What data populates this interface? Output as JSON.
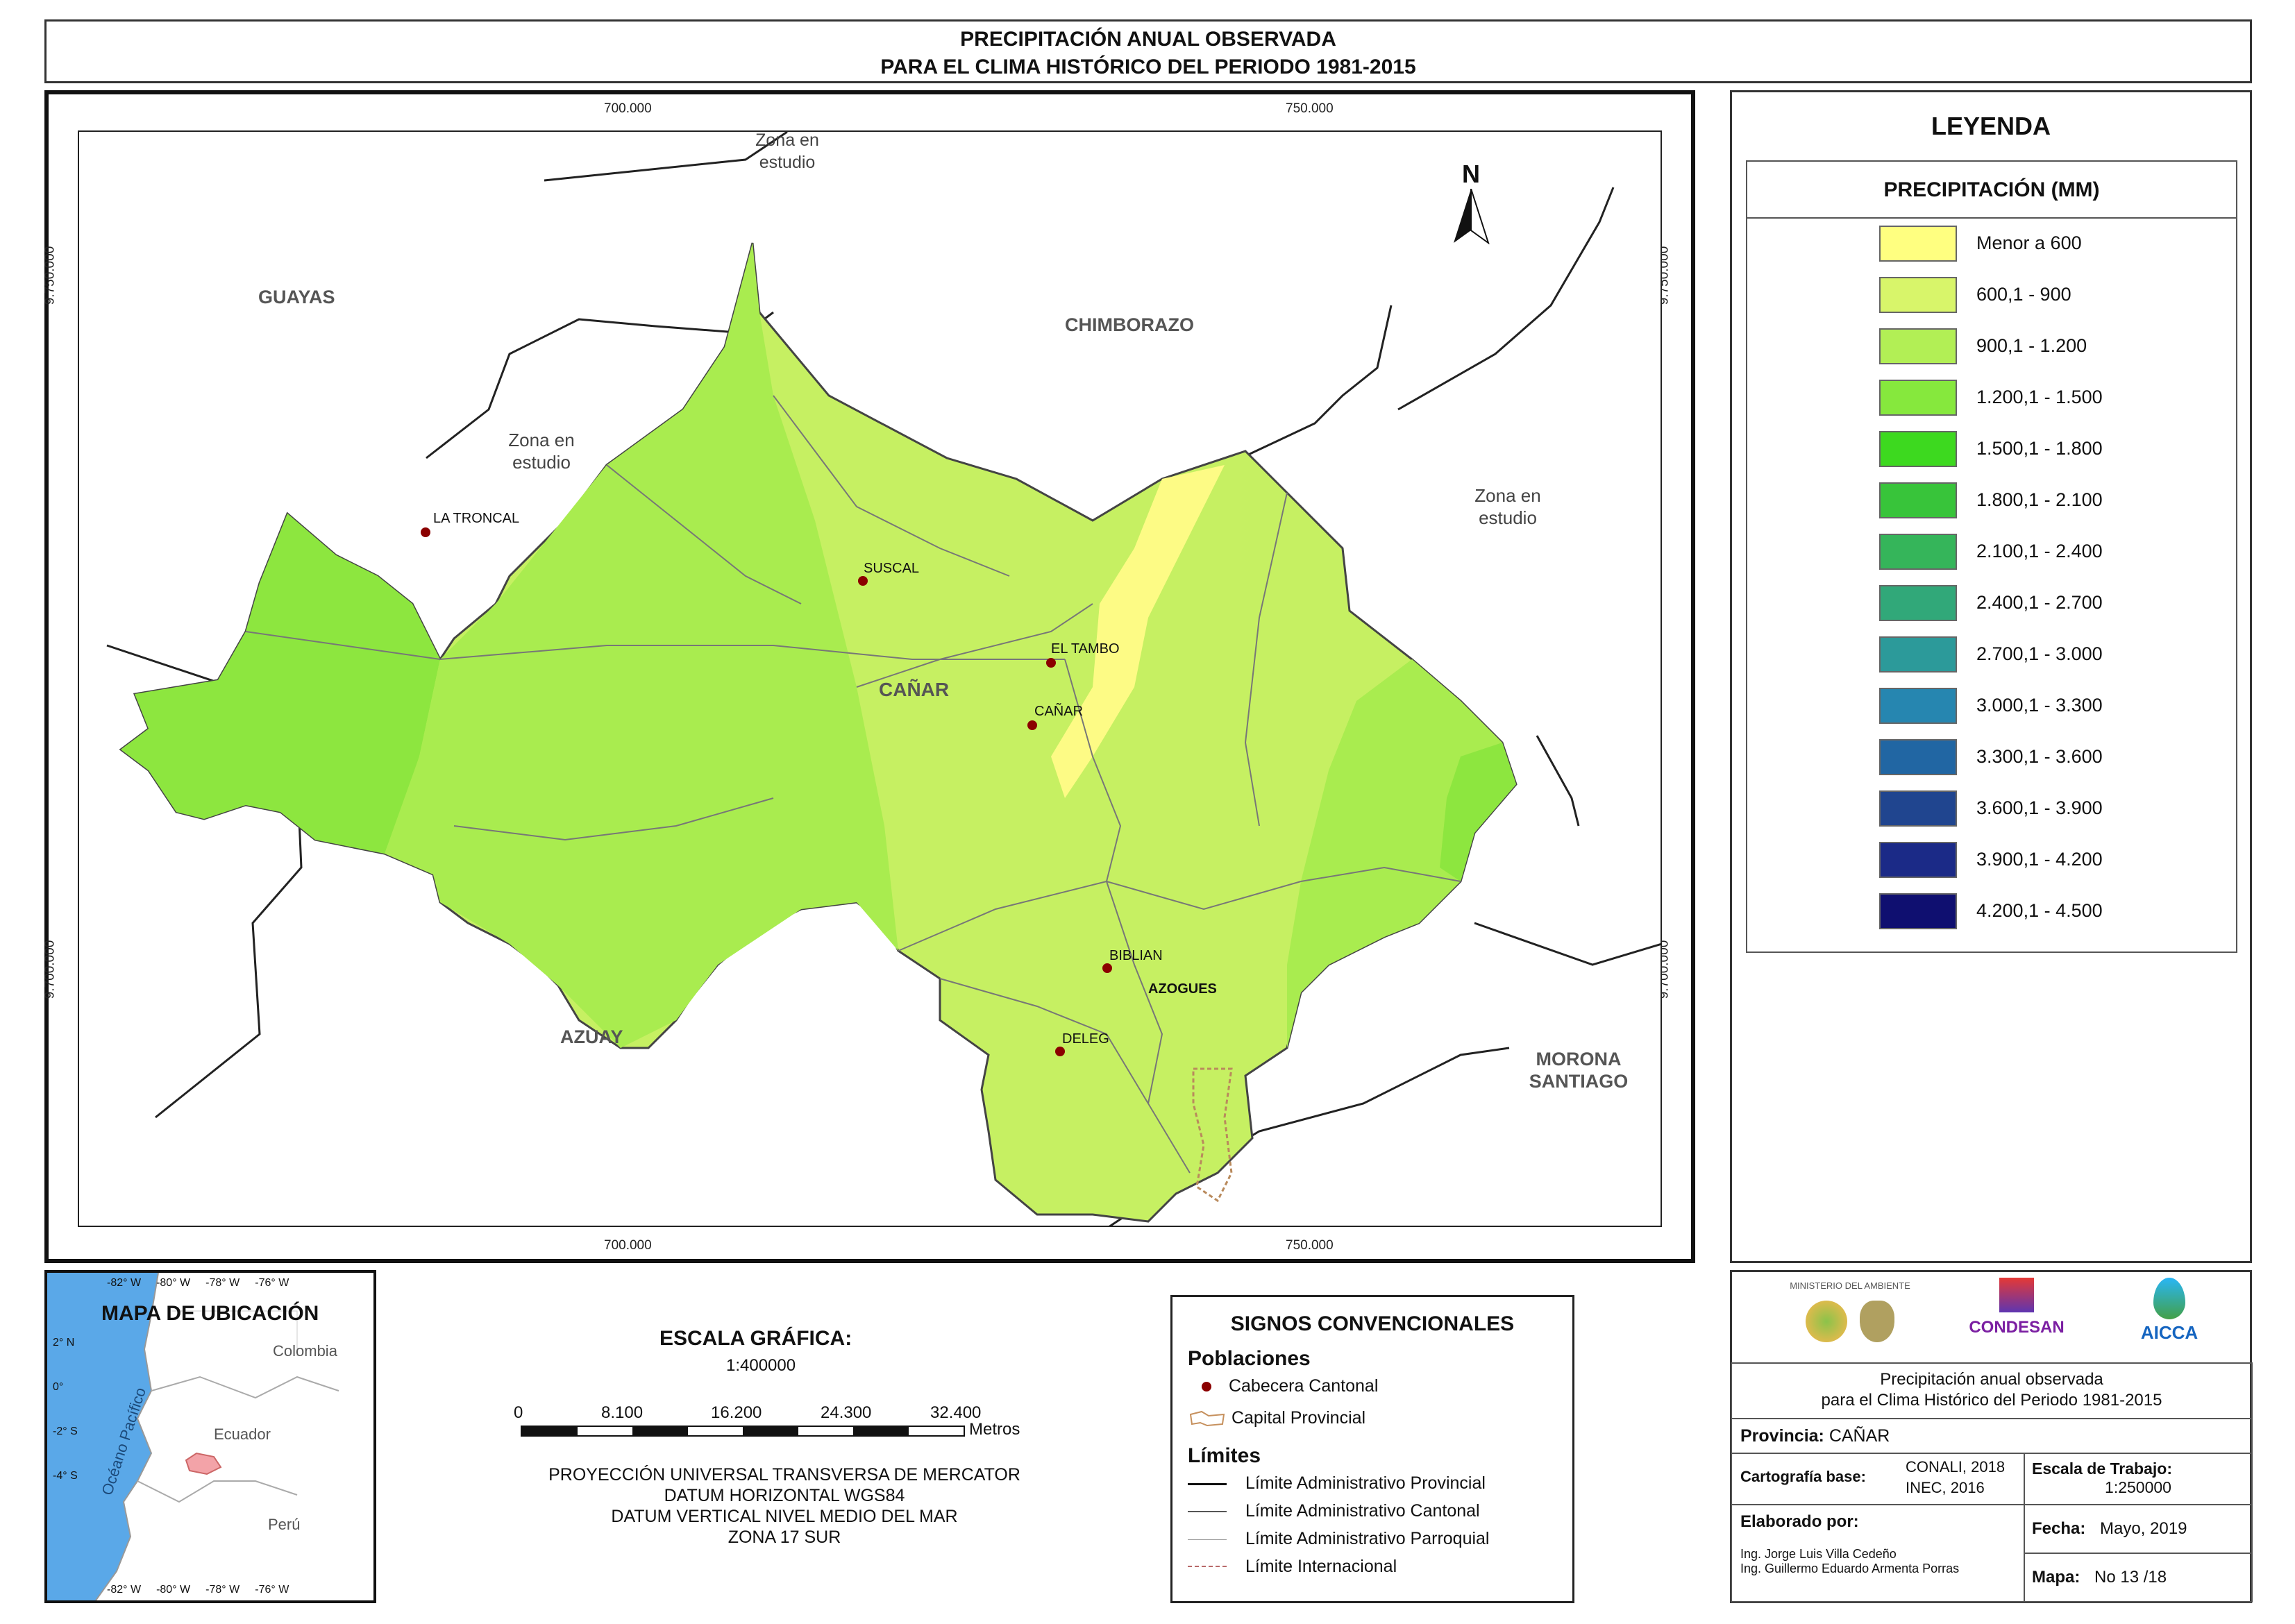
{
  "title": {
    "line1": "PRECIPITACIÓN ANUAL OBSERVADA",
    "line2": "PARA EL CLIMA HISTÓRICO DEL PERIODO 1981-2015"
  },
  "map": {
    "north_label": "N",
    "grid": {
      "x_labels": [
        "700.000",
        "750.000"
      ],
      "y_labels": [
        "9.750.000",
        "9.700.000"
      ]
    },
    "regions": {
      "guayas": "GUAYAS",
      "chimborazo": "CHIMBORAZO",
      "azuay": "AZUAY",
      "morona": "MORONA SANTIAGO",
      "zona_top": "Zona en estudio",
      "zona_left": "Zona en estudio",
      "zona_right": "Zona en estudio",
      "canar": "CAÑAR"
    },
    "towns": {
      "la_troncal": "LA TRONCAL",
      "suscal": "SUSCAL",
      "el_tambo": "EL TAMBO",
      "canar": "CAÑAR",
      "biblian": "BIBLIAN",
      "azogues": "AZOGUES",
      "deleg": "DELEG"
    }
  },
  "legend": {
    "title": "LEYENDA",
    "subtitle": "PRECIPITACIÓN (MM)",
    "items": [
      {
        "label": "Menor a 600",
        "color": "#ffff80"
      },
      {
        "label": "600,1 - 900",
        "color": "#d8f56a"
      },
      {
        "label": "900,1 - 1.200",
        "color": "#b2ef55"
      },
      {
        "label": "1.200,1 - 1.500",
        "color": "#86e83d"
      },
      {
        "label": "1.500,1 - 1.800",
        "color": "#3dd91f"
      },
      {
        "label": "1.800,1 - 2.100",
        "color": "#38c43a"
      },
      {
        "label": "2.100,1 - 2.400",
        "color": "#35b55a"
      },
      {
        "label": "2.400,1 - 2.700",
        "color": "#31a879"
      },
      {
        "label": "2.700,1 - 3.000",
        "color": "#2c9a9a"
      },
      {
        "label": "3.000,1 - 3.300",
        "color": "#2686b0"
      },
      {
        "label": "3.300,1 - 3.600",
        "color": "#2166a3"
      },
      {
        "label": "3.600,1 - 3.900",
        "color": "#20458f"
      },
      {
        "label": "3.900,1 - 4.200",
        "color": "#1b2a87"
      },
      {
        "label": "4.200,1 - 4.500",
        "color": "#0f0f70"
      }
    ]
  },
  "location_map": {
    "title": "MAPA DE UBICACIÓN",
    "top_ticks": [
      "-82° W",
      "-80° W",
      "-78° W",
      "-76° W"
    ],
    "bottom_ticks": [
      "-82° W",
      "-80° W",
      "-78° W",
      "-76° W"
    ],
    "lat_ticks": [
      "2° N",
      "0°",
      "-2° S",
      "-4° S"
    ],
    "labels": {
      "colombia": "Colombia",
      "ecuador": "Ecuador",
      "peru": "Perú",
      "ocean": "Océano Pacífico"
    }
  },
  "scale": {
    "title": "ESCALA GRÁFICA:",
    "ratio": "1:400000",
    "ticks": [
      "0",
      "8.100",
      "16.200",
      "24.300",
      "32.400"
    ],
    "unit": "Metros",
    "projection": [
      "PROYECCIÓN UNIVERSAL TRANSVERSA DE MERCATOR",
      "DATUM HORIZONTAL WGS84",
      "DATUM VERTICAL NIVEL MEDIO DEL MAR",
      "ZONA 17 SUR"
    ]
  },
  "signs": {
    "title": "SIGNOS CONVENCIONALES",
    "poblaciones_heading": "Poblaciones",
    "cabecera": "Cabecera Cantonal",
    "capital": "Capital Provincial",
    "limites_heading": "Límites",
    "lim_provincial": "Límite Administrativo Provincial",
    "lim_cantonal": "Límite Administrativo Cantonal",
    "lim_parroquial": "Límite Administrativo Parroquial",
    "lim_internacional": "Límite Internacional"
  },
  "info": {
    "logos": {
      "ministerio": "MINISTERIO DEL AMBIENTE",
      "condesan": "CONDESAN",
      "aicca": "AICCA"
    },
    "description_line1": "Precipitación anual observada",
    "description_line2": "para el Clima Histórico del Periodo 1981-2015",
    "provincia_label": "Provincia:",
    "provincia_value": "CAÑAR",
    "cartografia_label": "Cartografía base:",
    "cartografia_value1": "CONALI, 2018",
    "cartografia_value2": "INEC, 2016",
    "escala_label": "Escala de Trabajo:",
    "escala_value": "1:250000",
    "elaborado_label": "Elaborado por:",
    "autor1": "Ing. Jorge Luis Villa Cedeño",
    "autor2": "Ing. Guillermo Eduardo Armenta Porras",
    "fecha_label": "Fecha:",
    "fecha_value": "Mayo, 2019",
    "mapa_label": "Mapa:",
    "mapa_value": "No 13 /18"
  }
}
